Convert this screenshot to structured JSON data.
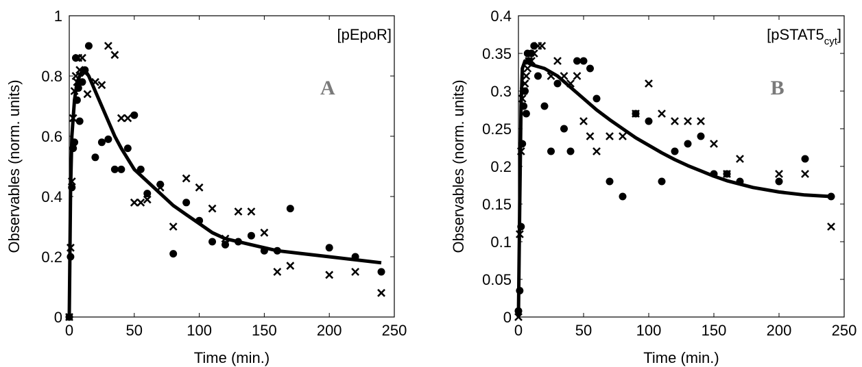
{
  "chart_data": [
    {
      "type": "scatter",
      "panel_label": "A",
      "legend_text": "[pEpoR]",
      "legend_sub": "",
      "legend_suffix": "",
      "xlabel": "Time (min.)",
      "ylabel": "Observables (norm. units)",
      "xlim": [
        0,
        250
      ],
      "ylim": [
        0,
        1
      ],
      "xticks": [
        0,
        50,
        100,
        150,
        200,
        250
      ],
      "yticks": [
        0,
        0.2,
        0.4,
        0.6,
        0.8,
        1
      ],
      "ytick_labels": [
        "0",
        "0.2",
        "0.4",
        "0.6",
        "0.8",
        "1"
      ],
      "series": [
        {
          "marker": "circle",
          "points": [
            [
              0,
              0
            ],
            [
              1,
              0.2
            ],
            [
              2,
              0.43
            ],
            [
              3,
              0.56
            ],
            [
              4,
              0.58
            ],
            [
              5,
              0.86
            ],
            [
              6,
              0.72
            ],
            [
              7,
              0.76
            ],
            [
              8,
              0.65
            ],
            [
              10,
              0.78
            ],
            [
              12,
              0.82
            ],
            [
              15,
              0.9
            ],
            [
              20,
              0.53
            ],
            [
              25,
              0.58
            ],
            [
              30,
              0.59
            ],
            [
              35,
              0.49
            ],
            [
              40,
              0.49
            ],
            [
              45,
              0.56
            ],
            [
              50,
              0.67
            ],
            [
              55,
              0.49
            ],
            [
              60,
              0.41
            ],
            [
              70,
              0.44
            ],
            [
              80,
              0.21
            ],
            [
              90,
              0.38
            ],
            [
              100,
              0.32
            ],
            [
              110,
              0.25
            ],
            [
              120,
              0.24
            ],
            [
              130,
              0.25
            ],
            [
              140,
              0.27
            ],
            [
              150,
              0.22
            ],
            [
              160,
              0.22
            ],
            [
              170,
              0.36
            ],
            [
              200,
              0.23
            ],
            [
              220,
              0.2
            ],
            [
              240,
              0.15
            ]
          ]
        },
        {
          "marker": "cross",
          "points": [
            [
              0,
              0
            ],
            [
              1,
              0.23
            ],
            [
              2,
              0.45
            ],
            [
              3,
              0.66
            ],
            [
              4,
              0.75
            ],
            [
              5,
              0.8
            ],
            [
              6,
              0.78
            ],
            [
              7,
              0.86
            ],
            [
              8,
              0.82
            ],
            [
              10,
              0.86
            ],
            [
              12,
              0.81
            ],
            [
              14,
              0.74
            ],
            [
              20,
              0.78
            ],
            [
              25,
              0.77
            ],
            [
              30,
              0.9
            ],
            [
              35,
              0.87
            ],
            [
              40,
              0.66
            ],
            [
              45,
              0.66
            ],
            [
              50,
              0.38
            ],
            [
              55,
              0.38
            ],
            [
              60,
              0.39
            ],
            [
              70,
              0.43
            ],
            [
              80,
              0.3
            ],
            [
              90,
              0.46
            ],
            [
              100,
              0.43
            ],
            [
              110,
              0.36
            ],
            [
              120,
              0.26
            ],
            [
              130,
              0.35
            ],
            [
              140,
              0.35
            ],
            [
              150,
              0.28
            ],
            [
              160,
              0.15
            ],
            [
              170,
              0.17
            ],
            [
              200,
              0.14
            ],
            [
              220,
              0.15
            ],
            [
              240,
              0.08
            ]
          ]
        }
      ],
      "fit_line": [
        [
          0,
          0
        ],
        [
          1,
          0.42
        ],
        [
          2,
          0.6
        ],
        [
          4,
          0.72
        ],
        [
          6,
          0.78
        ],
        [
          9,
          0.81
        ],
        [
          12,
          0.82
        ],
        [
          15,
          0.8
        ],
        [
          20,
          0.75
        ],
        [
          25,
          0.7
        ],
        [
          30,
          0.65
        ],
        [
          35,
          0.6
        ],
        [
          40,
          0.56
        ],
        [
          50,
          0.49
        ],
        [
          60,
          0.45
        ],
        [
          70,
          0.41
        ],
        [
          80,
          0.37
        ],
        [
          90,
          0.34
        ],
        [
          100,
          0.31
        ],
        [
          110,
          0.28
        ],
        [
          120,
          0.26
        ],
        [
          140,
          0.24
        ],
        [
          160,
          0.22
        ],
        [
          180,
          0.21
        ],
        [
          200,
          0.2
        ],
        [
          220,
          0.19
        ],
        [
          240,
          0.18
        ]
      ]
    },
    {
      "type": "scatter",
      "panel_label": "B",
      "legend_text": "[pSTAT5",
      "legend_sub": "cyt",
      "legend_suffix": "]",
      "xlabel": "Time (min.)",
      "ylabel": "Observables (norm. units)",
      "xlim": [
        0,
        250
      ],
      "ylim": [
        0,
        0.4
      ],
      "xticks": [
        0,
        50,
        100,
        150,
        200,
        250
      ],
      "yticks": [
        0,
        0.05,
        0.1,
        0.15,
        0.2,
        0.25,
        0.3,
        0.35,
        0.4
      ],
      "ytick_labels": [
        "0",
        "0.05",
        "0.1",
        "0.15",
        "0.2",
        "0.25",
        "0.3",
        "0.35",
        "0.4"
      ],
      "series": [
        {
          "marker": "circle",
          "points": [
            [
              0,
              0.008
            ],
            [
              1,
              0.035
            ],
            [
              2,
              0.12
            ],
            [
              3,
              0.23
            ],
            [
              4,
              0.28
            ],
            [
              5,
              0.3
            ],
            [
              6,
              0.27
            ],
            [
              7,
              0.35
            ],
            [
              8,
              0.34
            ],
            [
              10,
              0.35
            ],
            [
              12,
              0.36
            ],
            [
              15,
              0.32
            ],
            [
              20,
              0.28
            ],
            [
              25,
              0.22
            ],
            [
              30,
              0.31
            ],
            [
              35,
              0.25
            ],
            [
              40,
              0.22
            ],
            [
              45,
              0.34
            ],
            [
              50,
              0.34
            ],
            [
              55,
              0.33
            ],
            [
              60,
              0.29
            ],
            [
              70,
              0.18
            ],
            [
              80,
              0.16
            ],
            [
              90,
              0.27
            ],
            [
              100,
              0.26
            ],
            [
              110,
              0.18
            ],
            [
              120,
              0.22
            ],
            [
              130,
              0.23
            ],
            [
              140,
              0.24
            ],
            [
              150,
              0.19
            ],
            [
              160,
              0.19
            ],
            [
              170,
              0.18
            ],
            [
              200,
              0.18
            ],
            [
              220,
              0.21
            ],
            [
              240,
              0.16
            ]
          ]
        },
        {
          "marker": "cross",
          "points": [
            [
              0,
              0
            ],
            [
              1,
              0.11
            ],
            [
              2,
              0.22
            ],
            [
              3,
              0.29
            ],
            [
              4,
              0.3
            ],
            [
              5,
              0.31
            ],
            [
              6,
              0.32
            ],
            [
              7,
              0.33
            ],
            [
              8,
              0.34
            ],
            [
              10,
              0.34
            ],
            [
              12,
              0.35
            ],
            [
              15,
              0.36
            ],
            [
              18,
              0.36
            ],
            [
              25,
              0.32
            ],
            [
              30,
              0.34
            ],
            [
              35,
              0.32
            ],
            [
              40,
              0.31
            ],
            [
              45,
              0.32
            ],
            [
              50,
              0.26
            ],
            [
              55,
              0.24
            ],
            [
              60,
              0.22
            ],
            [
              70,
              0.24
            ],
            [
              80,
              0.24
            ],
            [
              90,
              0.27
            ],
            [
              100,
              0.31
            ],
            [
              110,
              0.27
            ],
            [
              120,
              0.26
            ],
            [
              130,
              0.26
            ],
            [
              140,
              0.26
            ],
            [
              150,
              0.23
            ],
            [
              160,
              0.19
            ],
            [
              170,
              0.21
            ],
            [
              200,
              0.19
            ],
            [
              220,
              0.19
            ],
            [
              240,
              0.12
            ]
          ]
        }
      ],
      "fit_line": [
        [
          0,
          0
        ],
        [
          1,
          0.15
        ],
        [
          2,
          0.28
        ],
        [
          3,
          0.33
        ],
        [
          5,
          0.34
        ],
        [
          10,
          0.335
        ],
        [
          20,
          0.33
        ],
        [
          30,
          0.32
        ],
        [
          40,
          0.305
        ],
        [
          50,
          0.29
        ],
        [
          60,
          0.275
        ],
        [
          70,
          0.262
        ],
        [
          80,
          0.25
        ],
        [
          90,
          0.238
        ],
        [
          100,
          0.228
        ],
        [
          110,
          0.218
        ],
        [
          120,
          0.209
        ],
        [
          130,
          0.201
        ],
        [
          140,
          0.194
        ],
        [
          150,
          0.187
        ],
        [
          160,
          0.181
        ],
        [
          180,
          0.172
        ],
        [
          200,
          0.166
        ],
        [
          220,
          0.162
        ],
        [
          240,
          0.16
        ]
      ]
    }
  ]
}
